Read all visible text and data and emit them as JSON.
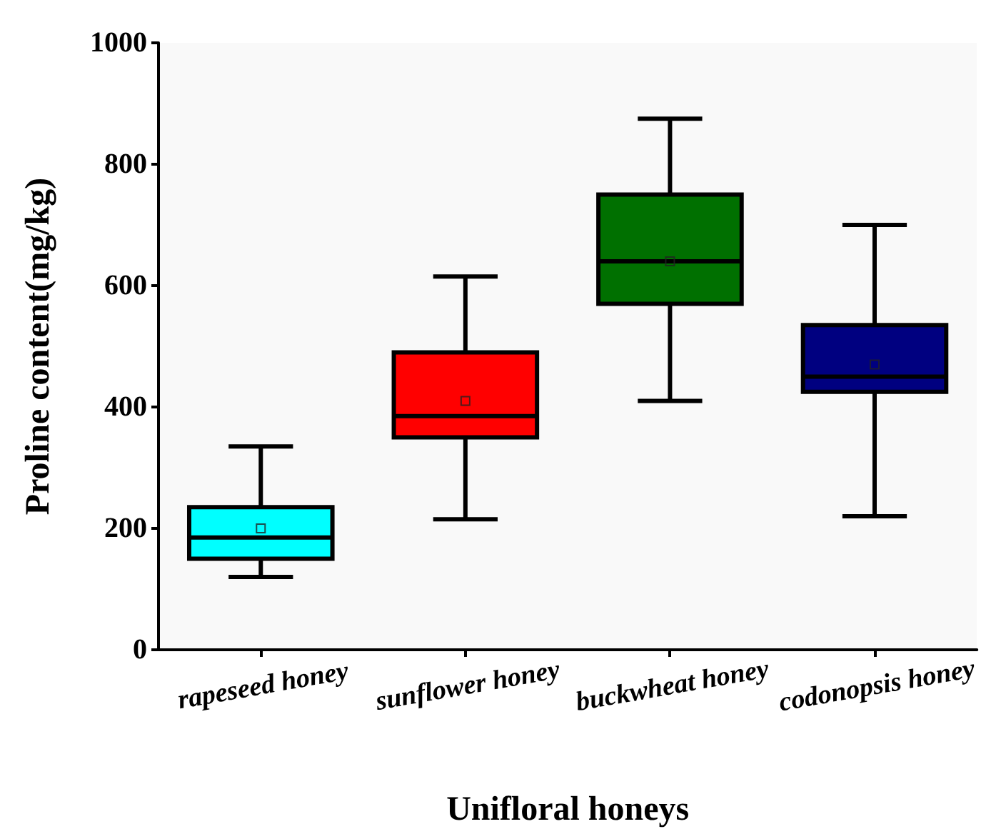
{
  "chart_data": {
    "type": "box",
    "xlabel": "Unifloral honeys",
    "ylabel": "Proline content(mg/kg)",
    "categories": [
      "rapeseed honey",
      "sunflower honey",
      "buckwheat honey",
      "codonopsis honey"
    ],
    "series": [
      {
        "colors": [
          "#00ffff",
          "#ff0000",
          "#007000",
          "#000080"
        ],
        "boxes": [
          {
            "low": 120,
            "q1": 150,
            "median": 185,
            "q3": 235,
            "high": 335,
            "mean": 200
          },
          {
            "low": 215,
            "q1": 350,
            "median": 385,
            "q3": 490,
            "high": 615,
            "mean": 410
          },
          {
            "low": 410,
            "q1": 570,
            "median": 640,
            "q3": 750,
            "high": 875,
            "mean": 640
          },
          {
            "low": 220,
            "q1": 425,
            "median": 450,
            "q3": 535,
            "high": 700,
            "mean": 470
          }
        ]
      }
    ],
    "ylim": [
      0,
      1000
    ],
    "yticks": [
      0,
      200,
      400,
      600,
      800,
      1000
    ],
    "grid": false,
    "marker": "square"
  }
}
